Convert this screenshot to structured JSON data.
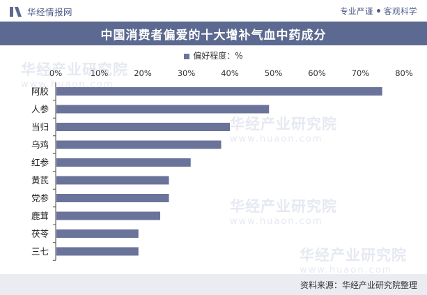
{
  "header": {
    "brand_name": "华经情报网",
    "slogan_left": "专业严谨",
    "slogan_right": "客观科学"
  },
  "title": "中国消费者偏爱的十大增补气血中药成分",
  "legend": "偏好程度：%",
  "watermark": {
    "text": "华经产业研究院",
    "url": "www.huaon.com"
  },
  "source": "资料来源：华经产业研究院整理",
  "colors": {
    "bar": "#6a7399",
    "title_bg": "#5c6990",
    "footer_bg": "#eaecf2"
  },
  "chart_data": {
    "type": "bar",
    "orientation": "horizontal",
    "categories": [
      "阿胶",
      "人参",
      "当归",
      "乌鸡",
      "红参",
      "黄芪",
      "党参",
      "鹿茸",
      "茯苓",
      "三七"
    ],
    "values": [
      75,
      49,
      40,
      38,
      31,
      26,
      26,
      24,
      19,
      19
    ],
    "ticks": [
      "0%",
      "10%",
      "20%",
      "30%",
      "40%",
      "50%",
      "60%",
      "70%",
      "80%"
    ],
    "xlim": [
      0,
      80
    ],
    "series": [
      {
        "name": "偏好程度：%",
        "values": [
          75,
          49,
          40,
          38,
          31,
          26,
          26,
          24,
          19,
          19
        ]
      }
    ],
    "legend_position": "top-center",
    "grid": false
  }
}
